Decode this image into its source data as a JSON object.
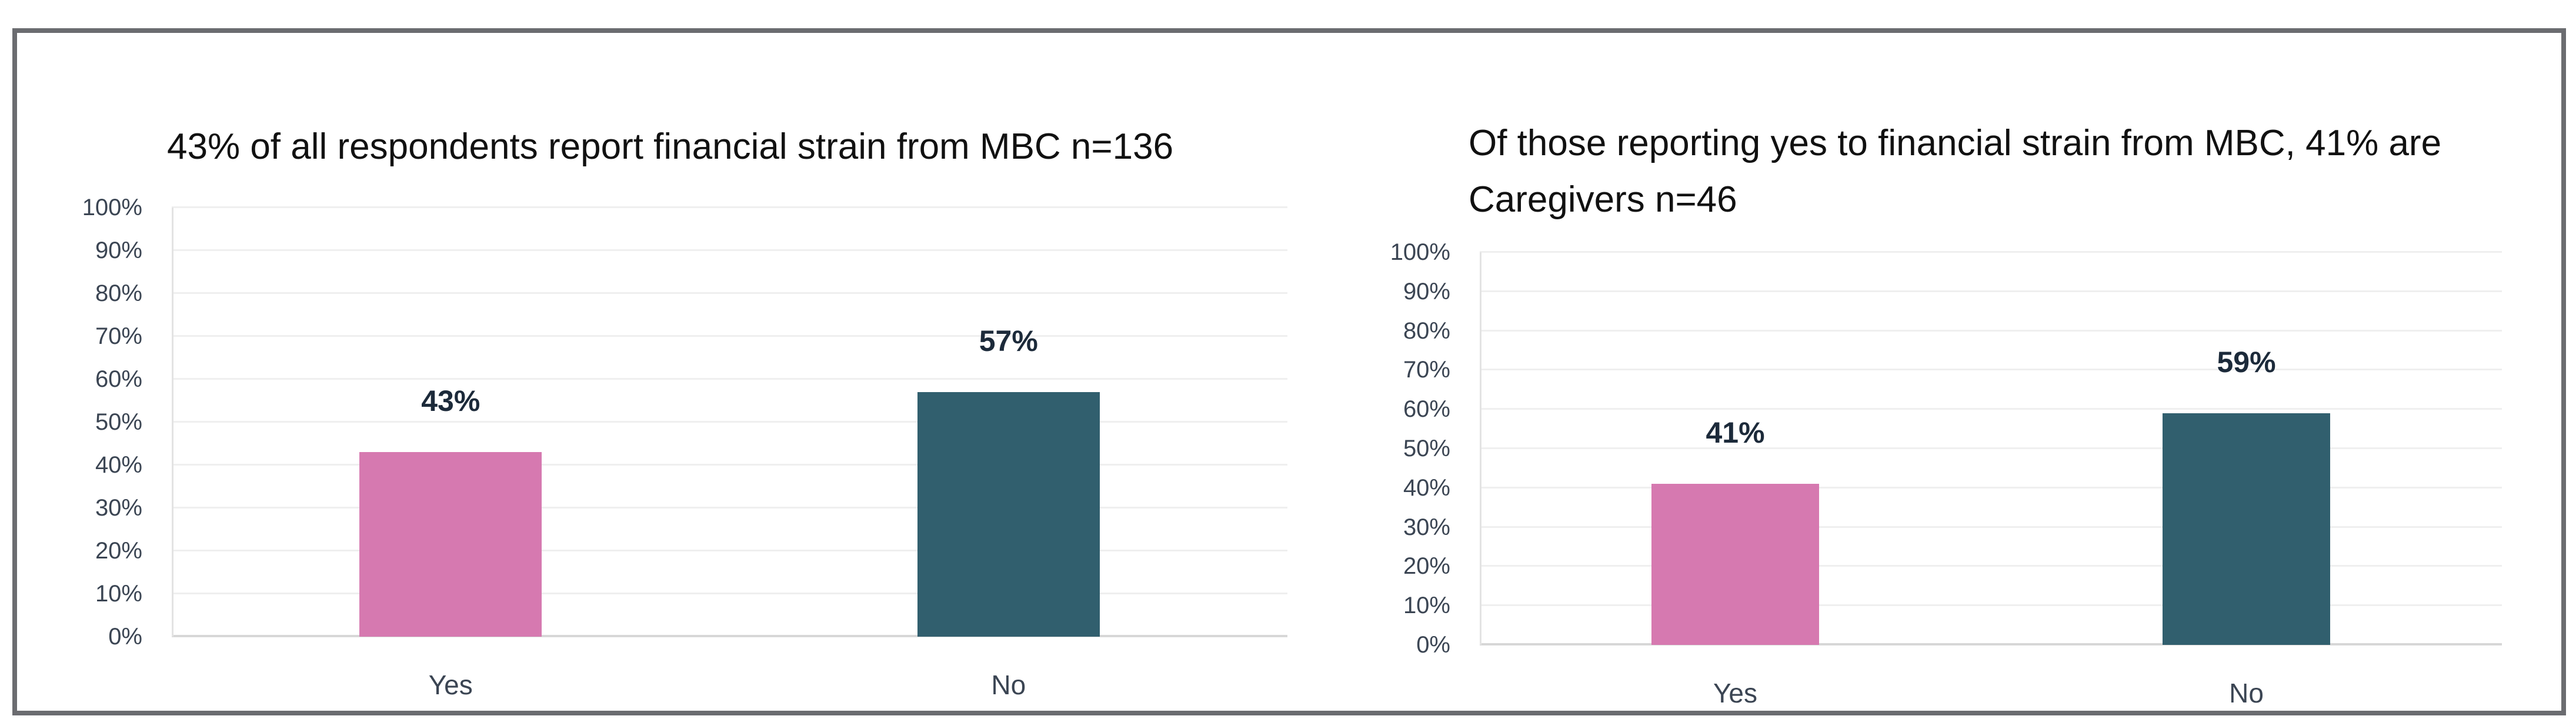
{
  "figure": {
    "background": "#ffffff",
    "border_color": "#6b6c70"
  },
  "chart_data": [
    {
      "type": "bar",
      "title": "43% of all respondents report financial strain from MBC n=136",
      "categories": [
        "Yes",
        "No"
      ],
      "values": [
        43,
        57
      ],
      "value_labels": [
        "43%",
        "57%"
      ],
      "bar_colors": [
        "#d679b0",
        "#315f6e"
      ],
      "xlabel": "",
      "ylabel": "",
      "ylim": [
        0,
        100
      ],
      "ytick_step": 10,
      "ytick_suffix": "%",
      "grid": true,
      "legend": false
    },
    {
      "type": "bar",
      "title": "Of those reporting yes to financial strain from MBC, 41% are Caregivers n=46",
      "categories": [
        "Yes",
        "No"
      ],
      "values": [
        41,
        59
      ],
      "value_labels": [
        "41%",
        "59%"
      ],
      "bar_colors": [
        "#d679b0",
        "#315f6e"
      ],
      "xlabel": "",
      "ylabel": "",
      "ylim": [
        0,
        100
      ],
      "ytick_step": 10,
      "ytick_suffix": "%",
      "grid": true,
      "legend": false
    }
  ]
}
